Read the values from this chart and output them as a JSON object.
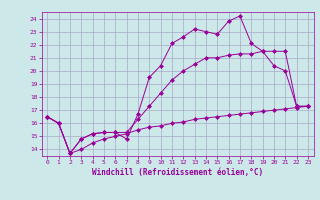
{
  "bg_color": "#cce8e8",
  "line_color": "#990099",
  "grid_color": "#aaaacc",
  "xlabel": "Windchill (Refroidissement éolien,°C)",
  "xlim": [
    -0.5,
    23.5
  ],
  "ylim": [
    13.5,
    24.5
  ],
  "yticks": [
    14,
    15,
    16,
    17,
    18,
    19,
    20,
    21,
    22,
    23,
    24
  ],
  "xticks": [
    0,
    1,
    2,
    3,
    4,
    5,
    6,
    7,
    8,
    9,
    10,
    11,
    12,
    13,
    14,
    15,
    16,
    17,
    18,
    19,
    20,
    21,
    22,
    23
  ],
  "line1_x": [
    0,
    1,
    2,
    3,
    4,
    5,
    6,
    7,
    8,
    9,
    10,
    11,
    12,
    13,
    14,
    15,
    16,
    17,
    18,
    19,
    20,
    21,
    22,
    23
  ],
  "line1_y": [
    16.5,
    16.0,
    13.7,
    14.8,
    15.2,
    15.3,
    15.3,
    14.8,
    16.7,
    19.5,
    20.4,
    22.1,
    22.6,
    23.2,
    23.0,
    22.8,
    23.8,
    24.2,
    22.1,
    21.5,
    20.4,
    20.0,
    17.3,
    17.3
  ],
  "line2_x": [
    0,
    1,
    2,
    3,
    4,
    5,
    6,
    7,
    8,
    9,
    10,
    11,
    12,
    13,
    14,
    15,
    16,
    17,
    18,
    19,
    20,
    21,
    22,
    23
  ],
  "line2_y": [
    16.5,
    16.0,
    13.7,
    14.8,
    15.2,
    15.3,
    15.3,
    15.3,
    16.3,
    17.3,
    18.3,
    19.3,
    20.0,
    20.5,
    21.0,
    21.0,
    21.2,
    21.3,
    21.3,
    21.5,
    21.5,
    21.5,
    17.3,
    17.3
  ],
  "line3_x": [
    0,
    1,
    2,
    3,
    4,
    5,
    6,
    7,
    8,
    9,
    10,
    11,
    12,
    13,
    14,
    15,
    16,
    17,
    18,
    19,
    20,
    21,
    22,
    23
  ],
  "line3_y": [
    16.5,
    16.0,
    13.7,
    14.0,
    14.5,
    14.8,
    15.0,
    15.2,
    15.5,
    15.7,
    15.8,
    16.0,
    16.1,
    16.3,
    16.4,
    16.5,
    16.6,
    16.7,
    16.8,
    16.9,
    17.0,
    17.1,
    17.2,
    17.3
  ]
}
